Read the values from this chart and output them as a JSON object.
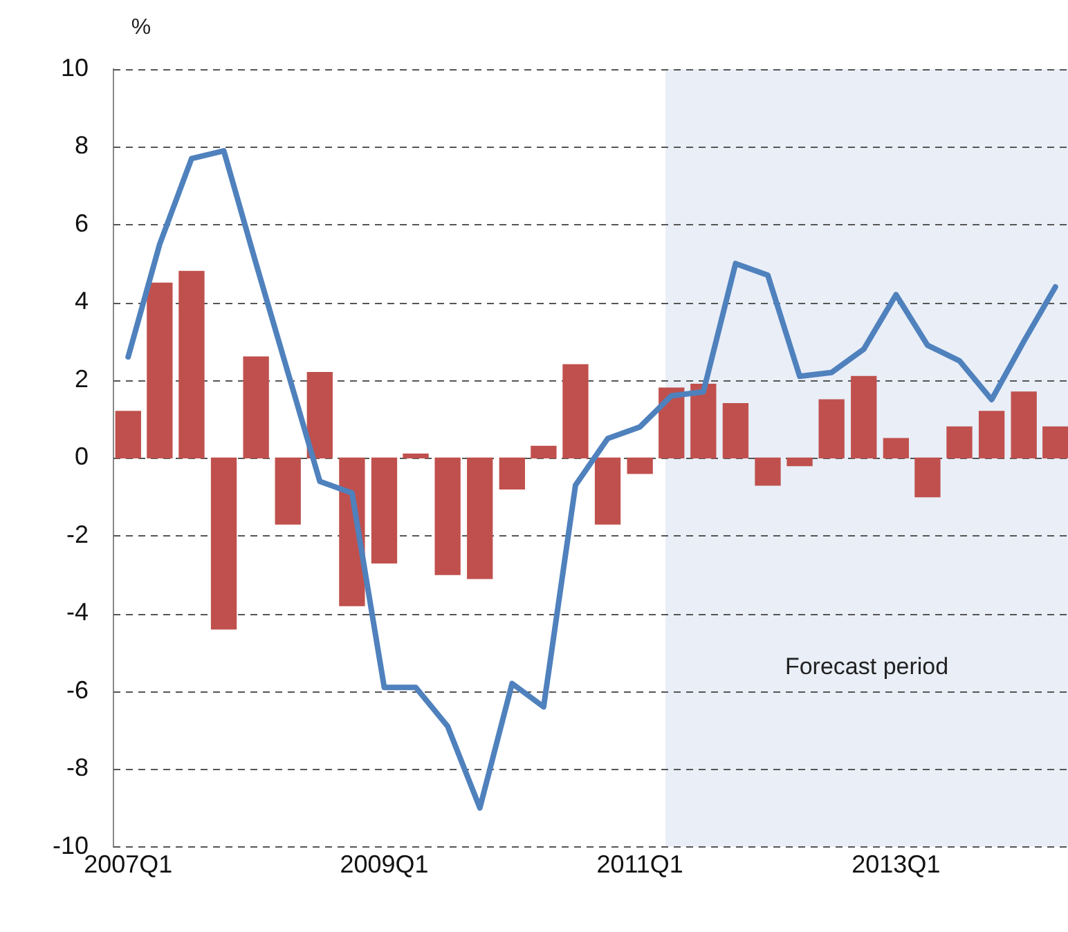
{
  "chart_data": {
    "type": "bar",
    "ylabel": "%",
    "x": [
      "2007-01",
      "2007-04",
      "2007-07",
      "2007-10",
      "2008-01",
      "2008-04",
      "2008-07",
      "2008-10",
      "2009-01",
      "2009-04",
      "2009-07",
      "2009-10",
      "2010-01",
      "2010-04",
      "2010-07",
      "2010-10",
      "2011-01",
      "2011-04",
      "2011-07",
      "2011-10",
      "2012-01",
      "2012-04",
      "2012-07",
      "2012-10",
      "2013-01",
      "2013-04",
      "2013-07",
      "2013-10",
      "2014-01",
      "2014-04"
    ],
    "series": [
      {
        "color": "#c0504d",
        "values": [
          1.2,
          4.5,
          4.8,
          -4.4,
          2.6,
          -1.7,
          2.2,
          -3.8,
          -2.7,
          0.1,
          -3.0,
          -3.1,
          -0.8,
          0.3,
          2.4,
          -1.7,
          -0.4,
          1.8,
          1.9,
          1.4,
          -0.7,
          -0.2,
          1.5,
          2.1,
          0.5,
          -1.0,
          0.8,
          1.2,
          1.7,
          0.8
        ]
      },
      {
        "type": "line",
        "color": "#4f81bd",
        "values": [
          2.6,
          5.5,
          7.7,
          7.9,
          5.0,
          2.2,
          -0.6,
          -0.9,
          -5.9,
          -5.9,
          -6.9,
          -9.0,
          -5.8,
          -6.4,
          -0.7,
          0.5,
          0.8,
          1.6,
          1.7,
          5.0,
          4.7,
          2.1,
          2.2,
          2.8,
          4.2,
          2.9,
          2.5,
          1.5,
          3.0,
          4.4
        ]
      }
    ],
    "xlim": [
      "2006-11-20",
      "2014-05-07"
    ],
    "xticks": [
      {
        "value": "2007-01",
        "label": "2007Q1"
      },
      {
        "value": "2009-01",
        "label": "2009Q1"
      },
      {
        "value": "2011-01",
        "label": "2011Q1"
      },
      {
        "value": "2013-01",
        "label": "2013Q1"
      }
    ],
    "ylim": [
      -10,
      10
    ],
    "yticks": [
      -10,
      -8,
      -6,
      -4,
      -2,
      0,
      2,
      4,
      6,
      8,
      10
    ],
    "grid": "y",
    "line_style": "solid",
    "marker": "none",
    "bands": [
      {
        "axis": "x",
        "from": "2011-03-15",
        "to": "2014-05-07",
        "label": "Forecast period",
        "color": "#e9eef7"
      }
    ]
  }
}
